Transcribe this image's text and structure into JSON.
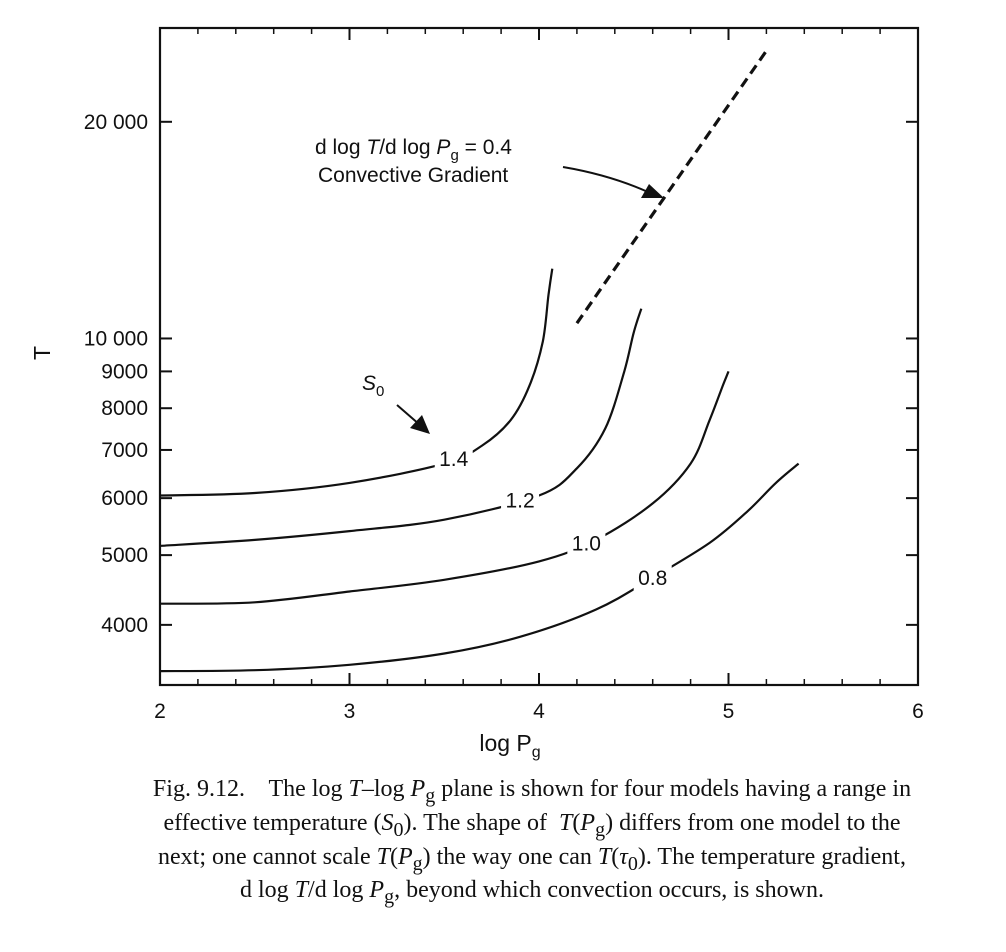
{
  "chart_data": {
    "type": "line",
    "xlabel": "log P",
    "xlabel_sub": "g",
    "ylabel": "T",
    "y_scale": "log",
    "xlim": [
      2,
      6
    ],
    "ylim": [
      3300,
      27000
    ],
    "x_ticks": [
      2,
      3,
      4,
      5,
      6
    ],
    "x_tick_labels": [
      "2",
      "3",
      "4",
      "5",
      "6"
    ],
    "y_ticks": [
      4000,
      5000,
      6000,
      7000,
      8000,
      9000,
      10000,
      20000
    ],
    "y_tick_labels": [
      "4000",
      "5000",
      "6000",
      "7000",
      "8000",
      "9000",
      "10 000",
      "20 000"
    ],
    "grid": false,
    "series": [
      {
        "name": "1.4",
        "x": [
          2.0,
          2.5,
          3.0,
          3.5,
          3.7,
          3.85,
          3.95,
          4.02,
          4.05,
          4.07
        ],
        "y": [
          6050,
          6100,
          6300,
          6700,
          7100,
          7700,
          8600,
          9900,
          11500,
          12500
        ]
      },
      {
        "name": "1.2",
        "x": [
          2.0,
          2.5,
          3.0,
          3.5,
          4.0,
          4.2,
          4.35,
          4.45,
          4.5,
          4.54
        ],
        "y": [
          5150,
          5250,
          5400,
          5600,
          6050,
          6600,
          7500,
          9000,
          10200,
          11000
        ]
      },
      {
        "name": "1.0",
        "x": [
          2.0,
          2.5,
          3.0,
          3.5,
          4.0,
          4.3,
          4.6,
          4.8,
          4.9,
          4.97,
          5.0
        ],
        "y": [
          4280,
          4300,
          4450,
          4620,
          4900,
          5250,
          5900,
          6700,
          7700,
          8600,
          9000
        ]
      },
      {
        "name": "0.8",
        "x": [
          2.0,
          2.5,
          3.0,
          3.5,
          3.9,
          4.3,
          4.6,
          4.9,
          5.1,
          5.25,
          5.37
        ],
        "y": [
          3450,
          3460,
          3520,
          3650,
          3850,
          4200,
          4650,
          5200,
          5750,
          6300,
          6700
        ]
      },
      {
        "name": "d log T/d log Pg = 0.4",
        "style": "dashed",
        "x": [
          4.2,
          5.2
        ],
        "y": [
          10500,
          25100
        ]
      }
    ],
    "annotations": {
      "s0_label": "S",
      "s0_sub": "0",
      "convective_line1_pre": "d log ",
      "convective_line1_T": "T",
      "convective_line1_mid": "/d log ",
      "convective_line1_P": "P",
      "convective_line1_sub": "g",
      "convective_line1_post": " = 0.4",
      "convective_line2": "Convective Gradient"
    }
  },
  "caption": {
    "line1": "Fig. 9.12.    The log T–log P g plane is shown for four models having a range in",
    "line2": "effective temperature (S 0). The shape of  T(P g) differs from one model to the",
    "line3": "next; one cannot scale T(P g) the way one can T(τ 0). The temperature gradient,",
    "line4": "d log T/d log P g, beyond which convection occurs, is shown."
  }
}
